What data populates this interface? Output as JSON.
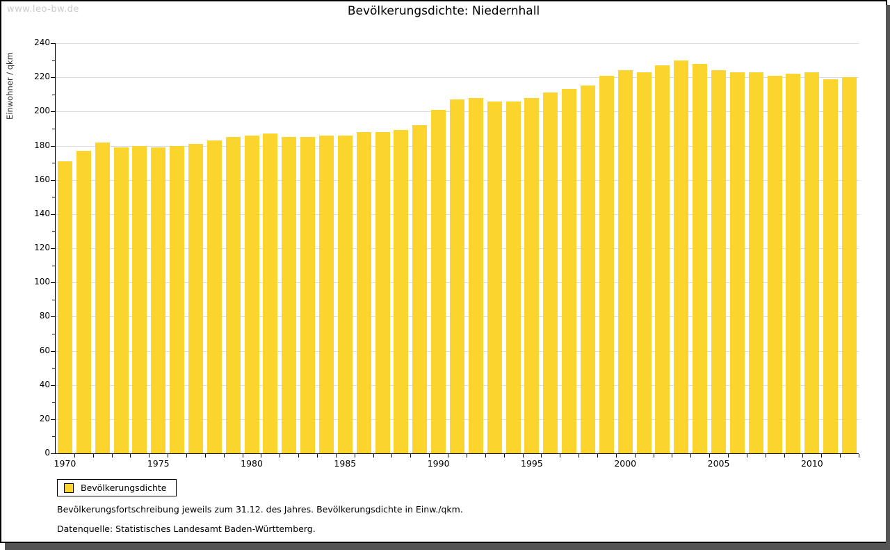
{
  "watermark": "www.leo-bw.de",
  "footnotes": {
    "line1": "Bevölkerungsfortschreibung jeweils zum 31.12. des Jahres. Bevölkerungsdichte in Einw./qkm.",
    "line2": "Datenquelle: Statistisches Landesamt Baden-Württemberg."
  },
  "chart_data": {
    "type": "bar",
    "title": "Bevölkerungsdichte: Niedernhall",
    "ylabel": "Einwohner / qkm",
    "series_name": "Bevölkerungsdichte",
    "ylim": [
      0,
      240
    ],
    "ytick_step": 20,
    "ytick_minor_step": 10,
    "grid": true,
    "legend_position": "bottom-left",
    "bar_color": "#fcd42e",
    "gridline_color": "#dbdbdb",
    "x_labeled_ticks": [
      1970,
      1975,
      1980,
      1985,
      1990,
      1995,
      2000,
      2005,
      2010
    ],
    "categories": [
      1970,
      1971,
      1972,
      1973,
      1974,
      1975,
      1976,
      1977,
      1978,
      1979,
      1980,
      1981,
      1982,
      1983,
      1984,
      1985,
      1986,
      1987,
      1988,
      1989,
      1990,
      1991,
      1992,
      1993,
      1994,
      1995,
      1996,
      1997,
      1998,
      1999,
      2000,
      2001,
      2002,
      2003,
      2004,
      2005,
      2006,
      2007,
      2008,
      2009,
      2010,
      2011,
      2012
    ],
    "values": [
      171,
      177,
      182,
      179,
      180,
      179,
      180,
      181,
      183,
      185,
      186,
      187,
      185,
      185,
      186,
      186,
      188,
      188,
      189,
      192,
      201,
      207,
      208,
      206,
      206,
      208,
      211,
      213,
      215,
      221,
      224,
      223,
      227,
      230,
      228,
      224,
      223,
      223,
      221,
      222,
      223,
      219,
      220
    ]
  }
}
